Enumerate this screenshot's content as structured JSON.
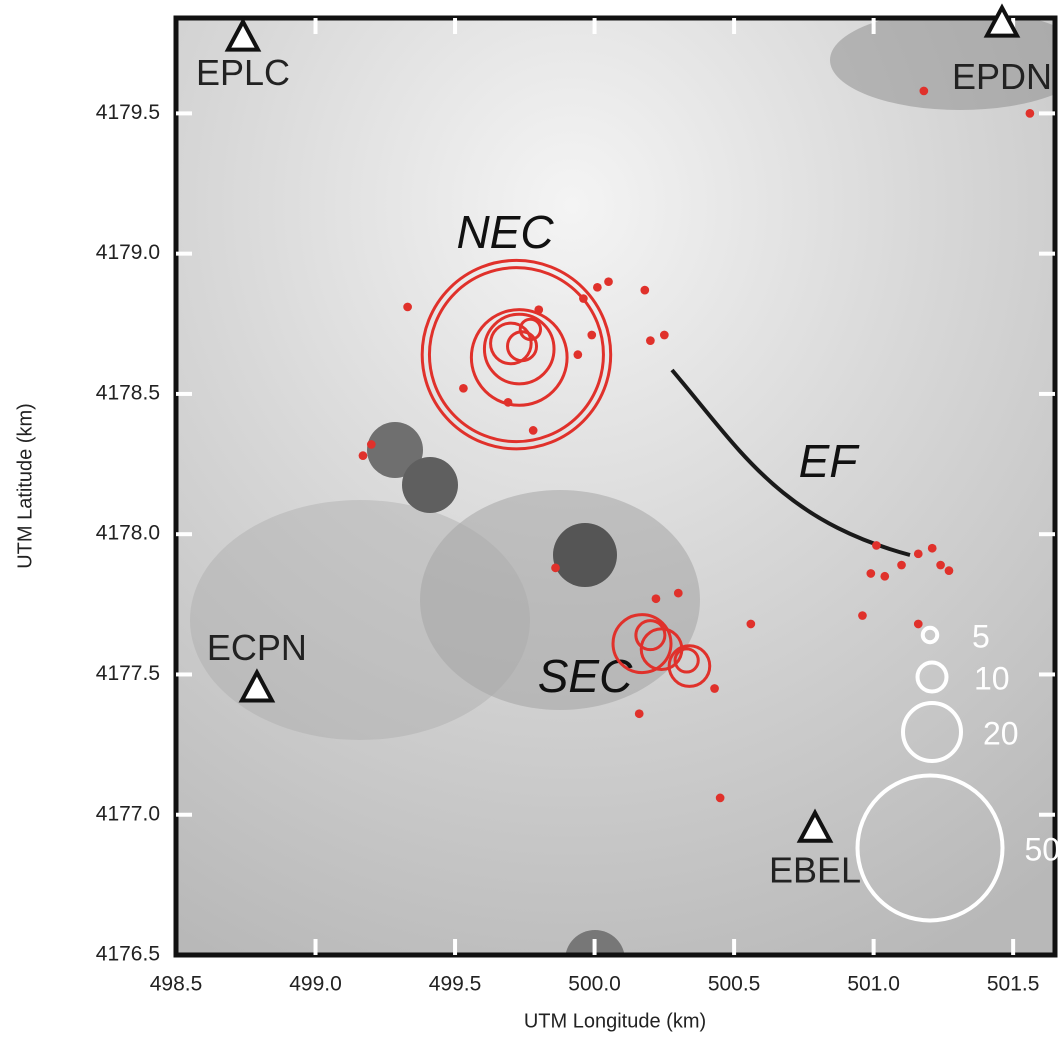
{
  "chart_data": {
    "type": "scatter",
    "xlabel": "UTM Longitude (km)",
    "ylabel": "UTM Latitude (km)",
    "xlim": [
      498.5,
      501.65
    ],
    "ylim": [
      4176.5,
      4179.84
    ],
    "xticks": [
      {
        "value": 498.5,
        "label": "498.5"
      },
      {
        "value": 499,
        "label": "499.0"
      },
      499.5,
      {
        "value": 500,
        "label": "500.0"
      },
      500.5,
      {
        "value": 501,
        "label": "501.0"
      },
      501.5
    ],
    "yticks": [
      4176.5,
      {
        "value": 4177,
        "label": "4177.0"
      },
      4177.5,
      {
        "value": 4178,
        "label": "4178.0"
      },
      4178.5,
      {
        "value": 4179,
        "label": "4179.0"
      },
      4179.5
    ],
    "stations": {
      "names": [
        "EPLC",
        "EPDN",
        "ECPN",
        "EBEL"
      ],
      "x": [
        498.74,
        501.46,
        498.79,
        500.79
      ],
      "y": [
        4179.77,
        4179.82,
        4177.45,
        4176.95
      ]
    },
    "color": "#e0312b",
    "events": {
      "x": [
        499.72,
        499.72,
        499.73,
        499.73,
        499.7,
        499.74,
        499.77,
        500.17,
        500.24,
        500.2,
        500.34,
        500.33,
        499.33,
        499.2,
        499.17,
        499.53,
        499.69,
        499.78,
        499.8,
        499.96,
        500.01,
        500.05,
        500.18,
        500.2,
        500.25,
        499.99,
        499.94,
        499.86,
        500.22,
        500.3,
        500.56,
        500.16,
        500.43,
        500.45,
        501.01,
        501.1,
        501.16,
        501.21,
        501.24,
        501.27,
        500.99,
        501.04,
        500.96,
        501.16,
        501.18,
        501.56
      ],
      "y": [
        4178.64,
        4178.64,
        4178.63,
        4178.66,
        4178.68,
        4178.67,
        4178.73,
        4177.61,
        4177.59,
        4177.64,
        4177.53,
        4177.55,
        4178.81,
        4178.32,
        4178.28,
        4178.52,
        4178.47,
        4178.37,
        4178.8,
        4178.84,
        4178.88,
        4178.9,
        4178.87,
        4178.69,
        4178.71,
        4178.71,
        4178.64,
        4177.88,
        4177.77,
        4177.79,
        4177.68,
        4177.36,
        4177.45,
        4177.06,
        4177.96,
        4177.89,
        4177.93,
        4177.95,
        4177.89,
        4177.87,
        4177.86,
        4177.85,
        4177.71,
        4177.68,
        4179.58,
        4179.5
      ],
      "sizes": [
        65,
        60,
        33,
        24,
        14,
        10,
        7,
        20,
        14,
        10,
        14,
        8,
        3,
        3,
        3,
        3,
        3,
        3,
        3,
        3,
        3,
        3,
        3,
        3,
        3,
        3,
        3,
        3,
        3,
        3,
        3,
        3,
        3,
        3,
        3,
        3,
        3,
        3,
        3,
        3,
        3,
        3,
        3,
        3,
        3,
        3
      ]
    },
    "size_legend": [
      5,
      10,
      20,
      50
    ],
    "annotations": [
      "NEC",
      "SEC",
      "EF"
    ]
  }
}
